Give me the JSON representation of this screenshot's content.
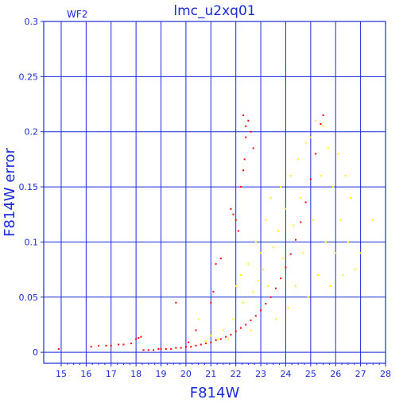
{
  "chart_data": {
    "type": "scatter",
    "title": "lmc_u2xq01",
    "panel_label": "WF2",
    "xlabel": "F814W",
    "ylabel": "F814W error",
    "xlim": [
      14.3,
      28
    ],
    "ylim": [
      -0.01,
      0.3
    ],
    "x_ticks": [
      "15",
      "16",
      "17",
      "18",
      "19",
      "20",
      "21",
      "22",
      "23",
      "24",
      "25",
      "26",
      "27",
      "28"
    ],
    "y_ticks": [
      "0",
      "0.05",
      "0.1",
      "0.15",
      "0.2",
      "0.25",
      "0.3"
    ],
    "grid": true,
    "colors": {
      "axis": "#1a2ad8",
      "red": "#ff0000",
      "yellow": "#ffff00"
    },
    "series": [
      {
        "color": "#ff0000",
        "points": [
          [
            14.9,
            0.003
          ],
          [
            16.2,
            0.005
          ],
          [
            16.5,
            0.006
          ],
          [
            16.8,
            0.006
          ],
          [
            17.0,
            0.006
          ],
          [
            17.3,
            0.007
          ],
          [
            17.5,
            0.007
          ],
          [
            17.8,
            0.008
          ],
          [
            18.0,
            0.012
          ],
          [
            18.1,
            0.013
          ],
          [
            18.2,
            0.014
          ],
          [
            18.3,
            0.002
          ],
          [
            18.5,
            0.002
          ],
          [
            18.7,
            0.002
          ],
          [
            18.9,
            0.003
          ],
          [
            19.0,
            0.003
          ],
          [
            19.2,
            0.003
          ],
          [
            19.4,
            0.003
          ],
          [
            19.6,
            0.004
          ],
          [
            19.8,
            0.004
          ],
          [
            20.0,
            0.005
          ],
          [
            20.2,
            0.005
          ],
          [
            20.4,
            0.006
          ],
          [
            20.6,
            0.007
          ],
          [
            20.8,
            0.008
          ],
          [
            21.0,
            0.009
          ],
          [
            21.2,
            0.011
          ],
          [
            21.4,
            0.012
          ],
          [
            21.6,
            0.014
          ],
          [
            21.8,
            0.016
          ],
          [
            22.0,
            0.019
          ],
          [
            22.2,
            0.022
          ],
          [
            22.4,
            0.025
          ],
          [
            22.6,
            0.029
          ],
          [
            22.8,
            0.033
          ],
          [
            23.0,
            0.038
          ],
          [
            23.2,
            0.044
          ],
          [
            23.4,
            0.05
          ],
          [
            23.6,
            0.058
          ],
          [
            23.8,
            0.067
          ],
          [
            24.0,
            0.077
          ],
          [
            24.2,
            0.089
          ],
          [
            24.4,
            0.102
          ],
          [
            24.6,
            0.118
          ],
          [
            24.8,
            0.136
          ],
          [
            25.0,
            0.157
          ],
          [
            25.2,
            0.18
          ],
          [
            25.4,
            0.207
          ],
          [
            25.5,
            0.215
          ],
          [
            19.6,
            0.045
          ],
          [
            20.1,
            0.009
          ],
          [
            20.4,
            0.02
          ],
          [
            21.0,
            0.045
          ],
          [
            21.1,
            0.055
          ],
          [
            21.2,
            0.08
          ],
          [
            21.4,
            0.085
          ],
          [
            21.8,
            0.13
          ],
          [
            21.9,
            0.125
          ],
          [
            22.0,
            0.12
          ],
          [
            22.1,
            0.11
          ],
          [
            22.2,
            0.15
          ],
          [
            22.3,
            0.165
          ],
          [
            22.35,
            0.175
          ],
          [
            22.4,
            0.195
          ],
          [
            22.5,
            0.21
          ],
          [
            22.6,
            0.2
          ],
          [
            22.7,
            0.185
          ],
          [
            22.3,
            0.215
          ],
          [
            22.4,
            0.205
          ]
        ]
      },
      {
        "color": "#ffff00",
        "points": [
          [
            20.5,
            0.03
          ],
          [
            20.8,
            0.01
          ],
          [
            21.0,
            0.015
          ],
          [
            21.3,
            0.012
          ],
          [
            21.5,
            0.02
          ],
          [
            21.7,
            0.012
          ],
          [
            21.9,
            0.03
          ],
          [
            22.0,
            0.06
          ],
          [
            22.2,
            0.07
          ],
          [
            22.3,
            0.045
          ],
          [
            22.5,
            0.08
          ],
          [
            22.6,
            0.02
          ],
          [
            22.7,
            0.055
          ],
          [
            22.8,
            0.1
          ],
          [
            22.9,
            0.065
          ],
          [
            23.0,
            0.09
          ],
          [
            23.1,
            0.075
          ],
          [
            23.2,
            0.12
          ],
          [
            23.3,
            0.06
          ],
          [
            23.4,
            0.14
          ],
          [
            23.5,
            0.095
          ],
          [
            23.6,
            0.03
          ],
          [
            23.7,
            0.11
          ],
          [
            23.8,
            0.15
          ],
          [
            23.9,
            0.085
          ],
          [
            24.0,
            0.13
          ],
          [
            24.1,
            0.04
          ],
          [
            24.2,
            0.16
          ],
          [
            24.3,
            0.115
          ],
          [
            24.4,
            0.06
          ],
          [
            24.5,
            0.175
          ],
          [
            24.6,
            0.14
          ],
          [
            24.7,
            0.09
          ],
          [
            24.8,
            0.19
          ],
          [
            24.9,
            0.05
          ],
          [
            25.0,
            0.195
          ],
          [
            25.1,
            0.12
          ],
          [
            25.2,
            0.21
          ],
          [
            25.3,
            0.07
          ],
          [
            25.4,
            0.16
          ],
          [
            25.5,
            0.205
          ],
          [
            25.6,
            0.1
          ],
          [
            25.7,
            0.185
          ],
          [
            25.8,
            0.06
          ],
          [
            25.9,
            0.15
          ],
          [
            26.0,
            0.09
          ],
          [
            26.1,
            0.18
          ],
          [
            26.2,
            0.12
          ],
          [
            26.3,
            0.07
          ],
          [
            26.4,
            0.16
          ],
          [
            26.5,
            0.1
          ],
          [
            26.6,
            0.14
          ],
          [
            26.8,
            0.075
          ],
          [
            27.0,
            0.09
          ],
          [
            27.5,
            0.12
          ]
        ]
      }
    ]
  }
}
